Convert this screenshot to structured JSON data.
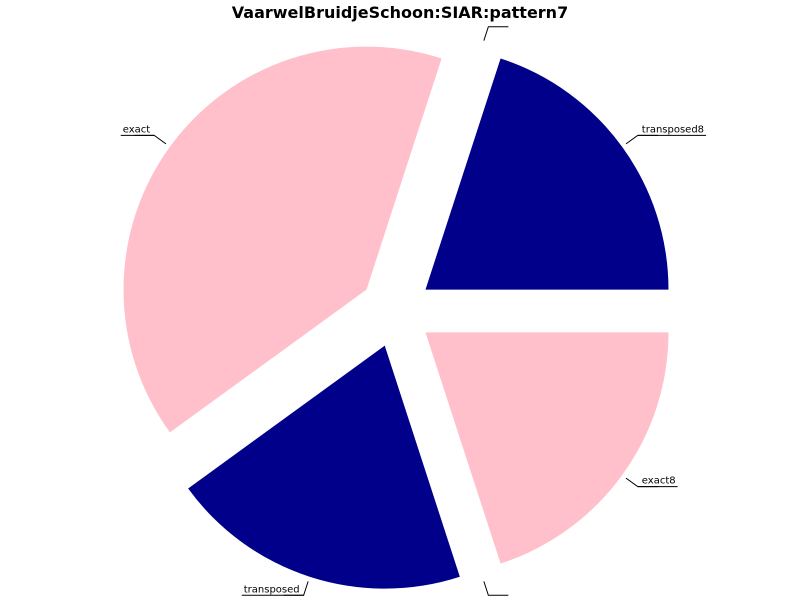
{
  "chart_data": {
    "type": "pie",
    "title": "VaarwelBruidjeSchoon:SIAR:pattern7",
    "slices": [
      {
        "label": "transposed8",
        "value": 20,
        "color": "#00008B",
        "explode": 0.15
      },
      {
        "label": "",
        "value": 0,
        "color": "#000000",
        "explode": 0.15
      },
      {
        "label": "exact",
        "value": 40,
        "color": "#FFC0CB",
        "explode": 0.15
      },
      {
        "label": "transposed",
        "value": 20,
        "color": "#00008B",
        "explode": 0.15
      },
      {
        "label": "",
        "value": 0,
        "color": "#000000",
        "explode": 0.15
      },
      {
        "label": "exact8",
        "value": 20,
        "color": "#FFC0CB",
        "explode": 0.15
      }
    ]
  }
}
